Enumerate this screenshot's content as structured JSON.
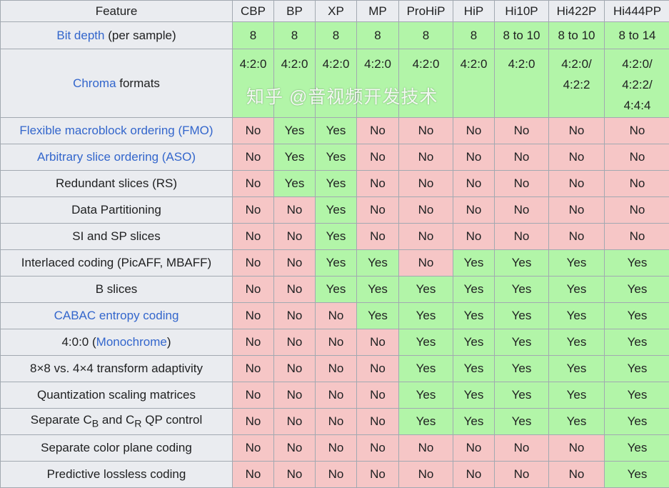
{
  "columns": [
    "Feature",
    "CBP",
    "BP",
    "XP",
    "MP",
    "ProHiP",
    "HiP",
    "Hi10P",
    "Hi422P",
    "Hi444PP"
  ],
  "rows": [
    {
      "feature": [
        {
          "text": "Bit depth",
          "link": true
        },
        {
          "text": " (per sample)"
        }
      ],
      "cells": [
        "8",
        "8",
        "8",
        "8",
        "8",
        "8",
        "8 to 10",
        "8 to 10",
        "8 to 14"
      ],
      "status": [
        "g",
        "g",
        "g",
        "g",
        "g",
        "g",
        "g",
        "g",
        "g"
      ]
    },
    {
      "feature": [
        {
          "text": "Chroma",
          "link": true
        },
        {
          "text": " formats"
        }
      ],
      "cells": [
        "4:2:0",
        "4:2:0",
        "4:2:0",
        "4:2:0",
        "4:2:0",
        "4:2:0",
        "4:2:0",
        "4:2:0/\n4:2:2",
        "4:2:0/\n4:2:2/\n4:4:4"
      ],
      "status": [
        "g",
        "g",
        "g",
        "g",
        "g",
        "g",
        "g",
        "g",
        "g"
      ]
    },
    {
      "feature": [
        {
          "text": "Flexible macroblock ordering (FMO)",
          "link": true
        }
      ],
      "cells": [
        "No",
        "Yes",
        "Yes",
        "No",
        "No",
        "No",
        "No",
        "No",
        "No"
      ]
    },
    {
      "feature": [
        {
          "text": "Arbitrary slice ordering (ASO)",
          "link": true
        }
      ],
      "cells": [
        "No",
        "Yes",
        "Yes",
        "No",
        "No",
        "No",
        "No",
        "No",
        "No"
      ]
    },
    {
      "feature": [
        {
          "text": "Redundant slices (RS)"
        }
      ],
      "cells": [
        "No",
        "Yes",
        "Yes",
        "No",
        "No",
        "No",
        "No",
        "No",
        "No"
      ]
    },
    {
      "feature": [
        {
          "text": "Data Partitioning"
        }
      ],
      "cells": [
        "No",
        "No",
        "Yes",
        "No",
        "No",
        "No",
        "No",
        "No",
        "No"
      ]
    },
    {
      "feature": [
        {
          "text": "SI and SP slices"
        }
      ],
      "cells": [
        "No",
        "No",
        "Yes",
        "No",
        "No",
        "No",
        "No",
        "No",
        "No"
      ]
    },
    {
      "feature": [
        {
          "text": "Interlaced coding (PicAFF, MBAFF)"
        }
      ],
      "cells": [
        "No",
        "No",
        "Yes",
        "Yes",
        "No",
        "Yes",
        "Yes",
        "Yes",
        "Yes"
      ]
    },
    {
      "feature": [
        {
          "text": "B slices"
        }
      ],
      "cells": [
        "No",
        "No",
        "Yes",
        "Yes",
        "Yes",
        "Yes",
        "Yes",
        "Yes",
        "Yes"
      ]
    },
    {
      "feature": [
        {
          "text": "CABAC entropy coding",
          "link": true
        }
      ],
      "cells": [
        "No",
        "No",
        "No",
        "Yes",
        "Yes",
        "Yes",
        "Yes",
        "Yes",
        "Yes"
      ]
    },
    {
      "feature": [
        {
          "text": "4:0:0 ("
        },
        {
          "text": "Monochrome",
          "link": true
        },
        {
          "text": ")"
        }
      ],
      "cells": [
        "No",
        "No",
        "No",
        "No",
        "Yes",
        "Yes",
        "Yes",
        "Yes",
        "Yes"
      ]
    },
    {
      "feature": [
        {
          "text": "8×8 vs. 4×4 transform adaptivity"
        }
      ],
      "cells": [
        "No",
        "No",
        "No",
        "No",
        "Yes",
        "Yes",
        "Yes",
        "Yes",
        "Yes"
      ]
    },
    {
      "feature": [
        {
          "text": "Quantization scaling matrices"
        }
      ],
      "cells": [
        "No",
        "No",
        "No",
        "No",
        "Yes",
        "Yes",
        "Yes",
        "Yes",
        "Yes"
      ]
    },
    {
      "feature": [
        {
          "text": "Separate C"
        },
        {
          "text": "B",
          "sub": true
        },
        {
          "text": " and C"
        },
        {
          "text": "R",
          "sub": true
        },
        {
          "text": " QP control"
        }
      ],
      "cells": [
        "No",
        "No",
        "No",
        "No",
        "Yes",
        "Yes",
        "Yes",
        "Yes",
        "Yes"
      ]
    },
    {
      "feature": [
        {
          "text": "Separate color plane coding"
        }
      ],
      "cells": [
        "No",
        "No",
        "No",
        "No",
        "No",
        "No",
        "No",
        "No",
        "Yes"
      ]
    },
    {
      "feature": [
        {
          "text": "Predictive lossless coding"
        }
      ],
      "cells": [
        "No",
        "No",
        "No",
        "No",
        "No",
        "No",
        "No",
        "No",
        "Yes"
      ]
    }
  ],
  "colors": {
    "yes": "#b2f5a8",
    "no": "#f6c6c6",
    "header": "#eaecf0",
    "link": "#3366cc"
  },
  "watermark": "知乎 @音视频开发技术"
}
